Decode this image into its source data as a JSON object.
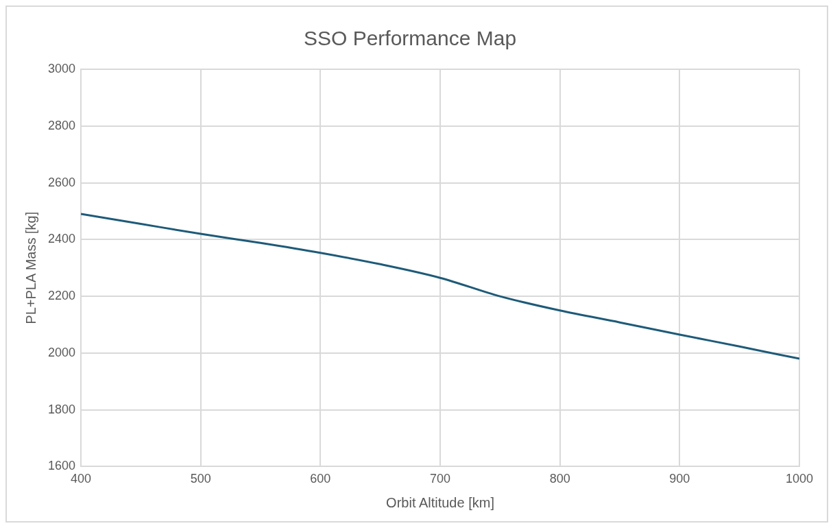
{
  "chart_data": {
    "type": "line",
    "title": "SSO Performance Map",
    "xlabel": "Orbit Altitude [km]",
    "ylabel": "PL+PLA Mass [kg]",
    "x": [
      400,
      450,
      500,
      550,
      600,
      650,
      700,
      750,
      800,
      850,
      900,
      950,
      1000
    ],
    "series": [
      {
        "color": "#1d5b79",
        "values": [
          2490,
          2455,
          2420,
          2388,
          2353,
          2313,
          2265,
          2200,
          2150,
          2108,
          2065,
          2023,
          1980
        ]
      }
    ],
    "xlim": [
      400,
      1000
    ],
    "xticks": [
      400,
      500,
      600,
      700,
      800,
      900,
      1000
    ],
    "ylim": [
      1600,
      3000
    ],
    "yticks": [
      1600,
      1800,
      2000,
      2200,
      2400,
      2600,
      2800,
      3000
    ],
    "grid": true,
    "legend": false,
    "marker": "none",
    "line_style": "solid"
  }
}
